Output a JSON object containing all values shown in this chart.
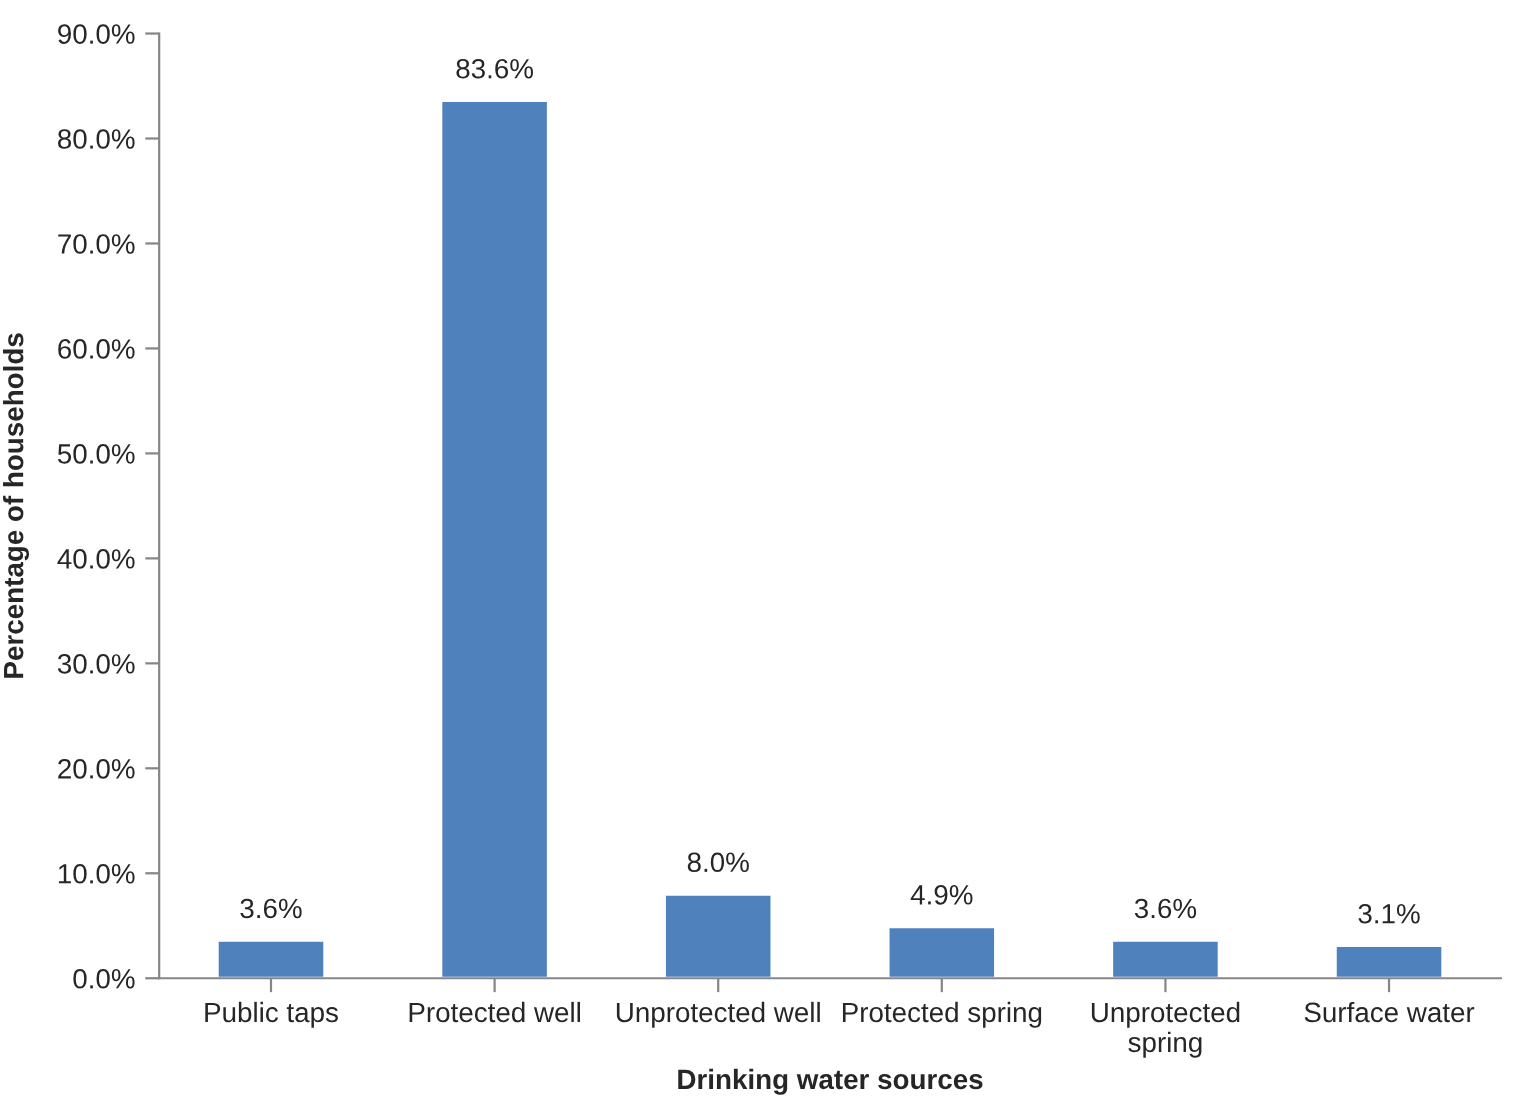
{
  "chart_data": {
    "type": "bar",
    "xlabel": "Drinking water sources",
    "ylabel": "Percentage of households",
    "categories": [
      "Public taps",
      "Protected well",
      "Unprotected well",
      "Protected spring",
      "Unprotected\nspring",
      "Surface water"
    ],
    "values": [
      3.6,
      83.6,
      8.0,
      4.9,
      3.6,
      3.1
    ],
    "value_labels": [
      "3.6%",
      "83.6%",
      "8.0%",
      "4.9%",
      "3.6%",
      "3.1%"
    ],
    "color": "#4f81bd",
    "ylim": [
      0,
      90
    ],
    "yticks": [
      {
        "value": 0,
        "label": "0.0%"
      },
      {
        "value": 10,
        "label": "10.0%"
      },
      {
        "value": 20,
        "label": "20.0%"
      },
      {
        "value": 30,
        "label": "30.0%"
      },
      {
        "value": 40,
        "label": "40.0%"
      },
      {
        "value": 50,
        "label": "50.0%"
      },
      {
        "value": 60,
        "label": "60.0%"
      },
      {
        "value": 70,
        "label": "70.0%"
      },
      {
        "value": 80,
        "label": "80.0%"
      },
      {
        "value": 90,
        "label": "90.0%"
      }
    ],
    "grid": false,
    "legend": false
  }
}
